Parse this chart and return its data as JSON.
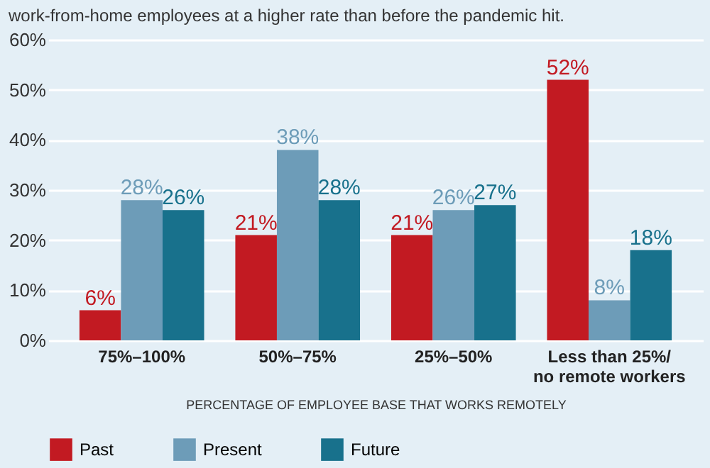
{
  "chart_data": {
    "type": "bar",
    "subtitle": "work-from-home employees at a higher rate than before the pandemic hit.",
    "xlabel": "PERCENTAGE OF EMPLOYEE BASE THAT WORKS REMOTELY",
    "categories": [
      "75%–100%",
      "50%–75%",
      "25%–50%",
      "Less than 25%/\nno remote workers"
    ],
    "series": [
      {
        "name": "Past",
        "color": "#c21a22",
        "values": [
          6,
          21,
          21,
          52
        ],
        "value_labels": [
          "6%",
          "21%",
          "21%",
          "52%"
        ]
      },
      {
        "name": "Present",
        "color": "#6d9cb8",
        "values": [
          28,
          38,
          26,
          8
        ],
        "value_labels": [
          "28%",
          "38%",
          "26%",
          "8%"
        ]
      },
      {
        "name": "Future",
        "color": "#18718c",
        "values": [
          26,
          28,
          27,
          18
        ],
        "value_labels": [
          "26%",
          "28%",
          "27%",
          "18%"
        ]
      }
    ],
    "ylim": [
      0,
      60
    ],
    "yticks": [
      {
        "value": 0,
        "label": "0%"
      },
      {
        "value": 10,
        "label": "10%"
      },
      {
        "value": 20,
        "label": "20%"
      },
      {
        "value": 30,
        "label": "30%"
      },
      {
        "value": 40,
        "label": "40%"
      },
      {
        "value": 50,
        "label": "50%"
      },
      {
        "value": 60,
        "label": "60%"
      }
    ],
    "grid": "y",
    "legend": "bottom"
  }
}
